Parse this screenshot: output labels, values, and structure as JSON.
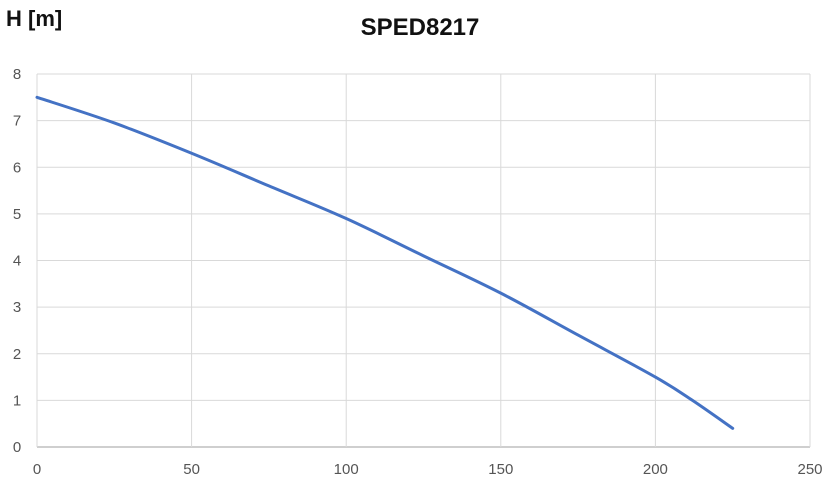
{
  "chart_data": {
    "type": "line",
    "title": "SPED8217",
    "xlabel": "",
    "ylabel": "H [m]",
    "xlim": [
      0,
      250
    ],
    "ylim": [
      0,
      8
    ],
    "x_ticks": [
      "0",
      "50",
      "100",
      "150",
      "200",
      "250"
    ],
    "y_ticks": [
      "0",
      "1",
      "2",
      "3",
      "4",
      "5",
      "6",
      "7",
      "8"
    ],
    "grid": true,
    "series": [
      {
        "color": "#4472C4",
        "x": [
          0,
          25,
          50,
          75,
          100,
          125,
          150,
          175,
          200,
          212,
          225
        ],
        "y": [
          7.5,
          6.95,
          6.3,
          5.6,
          4.9,
          4.1,
          3.3,
          2.4,
          1.5,
          1.0,
          0.4
        ]
      }
    ]
  }
}
